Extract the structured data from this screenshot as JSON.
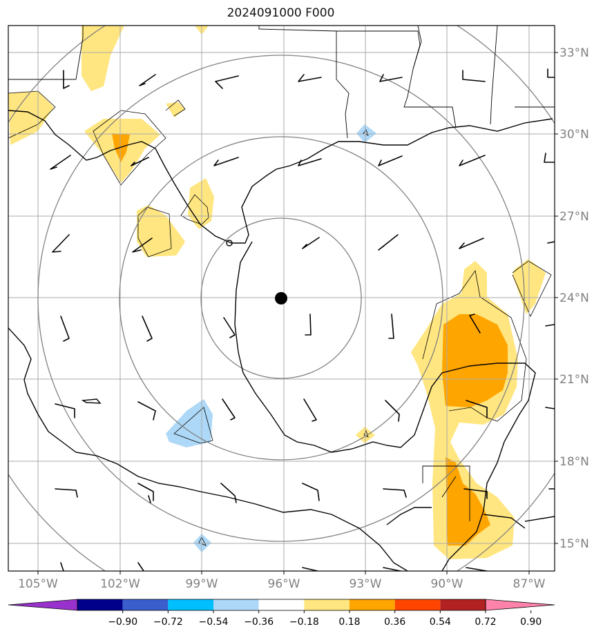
{
  "title": "2024091000 F000",
  "map": {
    "center_marker": {
      "lon": -96,
      "lat": 24
    },
    "lat_labels": [
      "33°N",
      "30°N",
      "27°N",
      "24°N",
      "21°N",
      "18°N",
      "15°N"
    ],
    "lon_labels": [
      "105°W",
      "102°W",
      "99°W",
      "96°W",
      "93°W",
      "90°W",
      "87°W"
    ],
    "lat_values": [
      33,
      30,
      27,
      24,
      21,
      18,
      15
    ],
    "lon_values": [
      -105,
      -102,
      -99,
      -96,
      -93,
      -90,
      -87
    ],
    "lon_range": [
      -106,
      -86
    ],
    "lat_range": [
      14,
      34
    ],
    "colors": {
      "land_outline": "#000000",
      "grid": "#aaaaaa",
      "range_rings": "#808080"
    }
  },
  "colorbar": {
    "tick_labels": [
      "−0.90",
      "−0.72",
      "−0.54",
      "−0.36",
      "−0.18",
      "0.18",
      "0.36",
      "0.54",
      "0.72",
      "0.90"
    ],
    "bins": [
      "#9932cc",
      "#00008b",
      "#3a5fcd",
      "#00bfff",
      "#add8f7",
      "#ffffff",
      "#ffe680",
      "#ffa500",
      "#ff4500",
      "#b22222",
      "#ff82ab"
    ]
  }
}
